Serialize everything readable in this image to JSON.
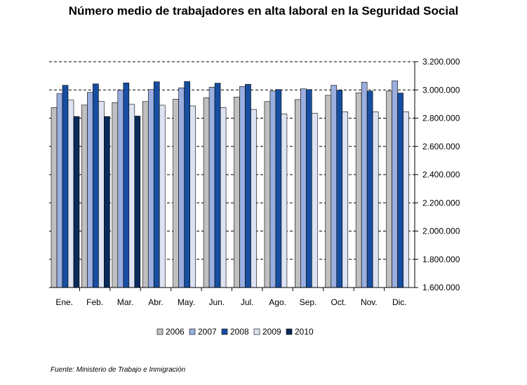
{
  "chart_data": {
    "type": "bar",
    "title": "Número medio de trabajadores en alta laboral en la Seguridad Social",
    "xlabel": "",
    "ylabel": "",
    "ylim": [
      1600000,
      3200000
    ],
    "yticks": [
      "1.600.000",
      "1.800.000",
      "2.000.000",
      "2.200.000",
      "2.400.000",
      "2.600.000",
      "2.800.000",
      "3.000.000",
      "3.200.000"
    ],
    "y_axis_side": "right",
    "grid": "horizontal dashed",
    "legend_position": "bottom",
    "categories": [
      "Ene.",
      "Feb.",
      "Mar.",
      "Abr.",
      "May.",
      "Jun.",
      "Jul.",
      "Ago.",
      "Sep.",
      "Oct.",
      "Nov.",
      "Dic."
    ],
    "series": [
      {
        "name": "2006",
        "color": "#c0c0c0",
        "values": [
          2875000,
          2893000,
          2910000,
          2918000,
          2935000,
          2945000,
          2950000,
          2918000,
          2932000,
          2962000,
          2980000,
          2992000
        ]
      },
      {
        "name": "2007",
        "color": "#9aaee0",
        "values": [
          2973000,
          2983000,
          2998000,
          3003000,
          3015000,
          3020000,
          3025000,
          2992000,
          3008000,
          3033000,
          3055000,
          3065000
        ]
      },
      {
        "name": "2008",
        "color": "#174ea0",
        "values": [
          3033000,
          3043000,
          3050000,
          3058000,
          3060000,
          3048000,
          3040000,
          3003000,
          3003000,
          2998000,
          2992000,
          2978000
        ]
      },
      {
        "name": "2009",
        "color": "#dde3f3",
        "values": [
          2928000,
          2918000,
          2898000,
          2892000,
          2887000,
          2875000,
          2862000,
          2830000,
          2835000,
          2845000,
          2845000,
          2845000
        ]
      },
      {
        "name": "2010",
        "color": "#0a2a5a",
        "values": [
          2812000,
          2812000,
          2815000,
          null,
          null,
          null,
          null,
          null,
          null,
          null,
          null,
          null
        ]
      }
    ],
    "source": "Fuente: Ministerio de Trabajo e Inmigración"
  }
}
